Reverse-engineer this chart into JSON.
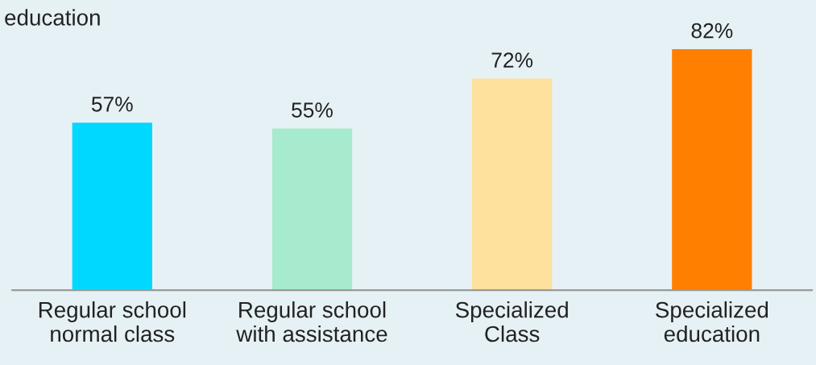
{
  "chart_data": {
    "type": "bar",
    "title": "education",
    "categories": [
      "Regular school\nnormal class",
      "Regular school\nwith assistance",
      "Specialized\nClass",
      "Specialized\neducation"
    ],
    "values": [
      57,
      55,
      72,
      82
    ],
    "colors": [
      "#00d8ff",
      "#a6ebcd",
      "#fde19c",
      "#ff7f00"
    ],
    "value_labels": [
      "57%",
      "55%",
      "72%",
      "82%"
    ],
    "grid": false,
    "legend": false
  }
}
